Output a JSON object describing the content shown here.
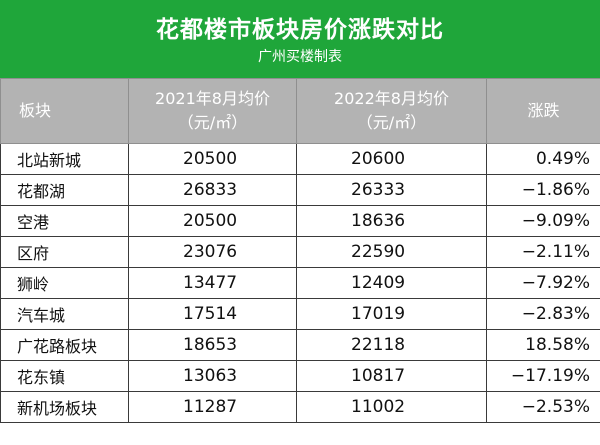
{
  "header": {
    "title": "花都楼市板块房价涨跌对比",
    "subtitle": "广州买楼制表"
  },
  "table": {
    "columns": [
      {
        "line1": "板块",
        "line2": ""
      },
      {
        "line1": "2021年8月均价",
        "line2": "（元/㎡）"
      },
      {
        "line1": "2022年8月均价",
        "line2": "（元/㎡）"
      },
      {
        "line1": "涨跌",
        "line2": ""
      }
    ],
    "rows": [
      {
        "name": "北站新城",
        "v2021": "20500",
        "v2022": "20600",
        "change": "0.49%"
      },
      {
        "name": "花都湖",
        "v2021": "26833",
        "v2022": "26333",
        "change": "−1.86%"
      },
      {
        "name": "空港",
        "v2021": "20500",
        "v2022": "18636",
        "change": "−9.09%"
      },
      {
        "name": "区府",
        "v2021": "23076",
        "v2022": "22590",
        "change": "−2.11%"
      },
      {
        "name": "狮岭",
        "v2021": "13477",
        "v2022": "12409",
        "change": "−7.92%"
      },
      {
        "name": "汽车城",
        "v2021": "17514",
        "v2022": "17019",
        "change": "−2.83%"
      },
      {
        "name": "广花路板块",
        "v2021": "18653",
        "v2022": "22118",
        "change": "18.58%"
      },
      {
        "name": "花东镇",
        "v2021": "13063",
        "v2022": "10817",
        "change": "−17.19%"
      },
      {
        "name": "新机场板块",
        "v2021": "11287",
        "v2022": "11002",
        "change": "−2.53%"
      }
    ]
  }
}
